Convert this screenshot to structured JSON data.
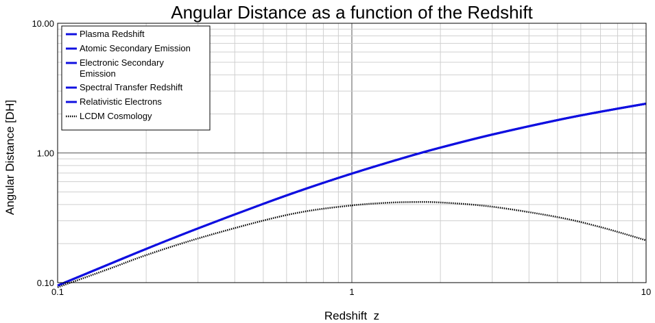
{
  "chart_data": {
    "type": "line",
    "title": "Angular Distance as a function of the Redshift",
    "xlabel": "Redshift  z",
    "ylabel": "Angular Distance [DH]",
    "x_scale": "log",
    "y_scale": "log",
    "xlim": [
      0.1,
      10
    ],
    "ylim": [
      0.1,
      10
    ],
    "x_ticks": [
      {
        "value": 0.1,
        "label": "0.1"
      },
      {
        "value": 1,
        "label": "1"
      },
      {
        "value": 10,
        "label": "10"
      }
    ],
    "y_ticks": [
      {
        "value": 0.1,
        "label": "0.10"
      },
      {
        "value": 1,
        "label": "1.00"
      },
      {
        "value": 10,
        "label": "10.00"
      }
    ],
    "grid": true,
    "legend_position": "top-left",
    "colors": {
      "blue": "#1010e0",
      "black": "#000000"
    },
    "series": [
      {
        "name": "Plasma Redshift",
        "style": "solid",
        "color": "#1010e0",
        "x": [
          0.1,
          0.15,
          0.2,
          0.3,
          0.5,
          0.7,
          1,
          1.5,
          2,
          3,
          5,
          7,
          10
        ],
        "y": [
          0.095,
          0.139,
          0.182,
          0.262,
          0.405,
          0.531,
          0.693,
          0.916,
          1.099,
          1.386,
          1.792,
          2.079,
          2.398
        ]
      },
      {
        "name": "Atomic Secondary Emission",
        "style": "solid",
        "color": "#1010e0",
        "x": [
          0.1,
          0.15,
          0.2,
          0.3,
          0.5,
          0.7,
          1,
          1.5,
          2,
          3,
          5,
          7,
          10
        ],
        "y": [
          0.095,
          0.139,
          0.182,
          0.262,
          0.405,
          0.531,
          0.693,
          0.916,
          1.099,
          1.386,
          1.792,
          2.079,
          2.398
        ]
      },
      {
        "name": "Electronic Secondary Emission",
        "style": "solid",
        "color": "#1010e0",
        "x": [
          0.1,
          0.15,
          0.2,
          0.3,
          0.5,
          0.7,
          1,
          1.5,
          2,
          3,
          5,
          7,
          10
        ],
        "y": [
          0.095,
          0.139,
          0.182,
          0.262,
          0.405,
          0.531,
          0.693,
          0.916,
          1.099,
          1.386,
          1.792,
          2.079,
          2.398
        ]
      },
      {
        "name": "Spectral Transfer Redshift",
        "style": "solid",
        "color": "#1010e0",
        "x": [
          0.1,
          0.15,
          0.2,
          0.3,
          0.5,
          0.7,
          1,
          1.5,
          2,
          3,
          5,
          7,
          10
        ],
        "y": [
          0.095,
          0.139,
          0.182,
          0.262,
          0.405,
          0.531,
          0.693,
          0.916,
          1.099,
          1.386,
          1.792,
          2.079,
          2.398
        ]
      },
      {
        "name": "Relativistic Electrons",
        "style": "solid",
        "color": "#1010e0",
        "x": [
          0.1,
          0.15,
          0.2,
          0.3,
          0.5,
          0.7,
          1,
          1.5,
          2,
          3,
          5,
          7,
          10
        ],
        "y": [
          0.095,
          0.139,
          0.182,
          0.262,
          0.405,
          0.531,
          0.693,
          0.916,
          1.099,
          1.386,
          1.792,
          2.079,
          2.398
        ]
      },
      {
        "name": "LCDM Cosmology",
        "style": "dotted",
        "color": "#000000",
        "x": [
          0.1,
          0.15,
          0.2,
          0.3,
          0.5,
          0.7,
          1,
          1.3,
          1.6,
          2,
          3,
          5,
          7,
          10
        ],
        "y": [
          0.092,
          0.128,
          0.163,
          0.219,
          0.301,
          0.355,
          0.394,
          0.412,
          0.418,
          0.415,
          0.385,
          0.32,
          0.268,
          0.212
        ]
      }
    ]
  }
}
